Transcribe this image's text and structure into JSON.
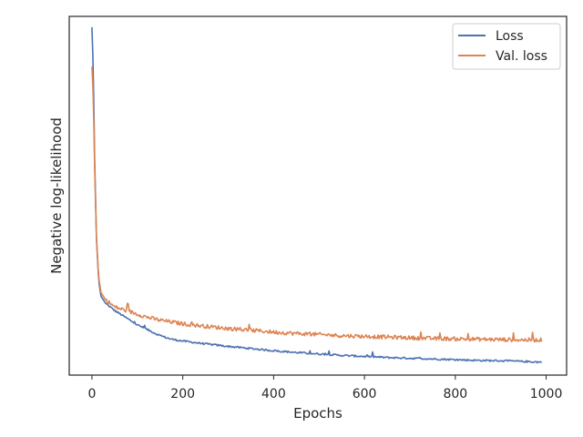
{
  "chart_data": {
    "type": "line",
    "title": "",
    "xlabel": "Epochs",
    "ylabel": "Negative log-likelihood",
    "xlim": [
      -50,
      1045
    ],
    "ylim": [
      0,
      100
    ],
    "x_ticks": [
      0,
      200,
      400,
      600,
      800,
      1000
    ],
    "y_ticks_visible": false,
    "grid": false,
    "legend_position": "top-right",
    "series": [
      {
        "name": "Loss",
        "color": "#4c72b0",
        "points": [
          [
            0,
            97
          ],
          [
            3,
            85
          ],
          [
            6,
            60
          ],
          [
            10,
            38
          ],
          [
            15,
            26
          ],
          [
            20,
            22
          ],
          [
            30,
            20
          ],
          [
            50,
            18
          ],
          [
            75,
            16
          ],
          [
            100,
            14
          ],
          [
            125,
            12.5
          ],
          [
            150,
            11
          ],
          [
            175,
            10
          ],
          [
            200,
            9.5
          ],
          [
            250,
            8.7
          ],
          [
            300,
            8
          ],
          [
            350,
            7.4
          ],
          [
            400,
            6.8
          ],
          [
            450,
            6.3
          ],
          [
            500,
            5.9
          ],
          [
            550,
            5.5
          ],
          [
            600,
            5.2
          ],
          [
            650,
            4.9
          ],
          [
            700,
            4.7
          ],
          [
            750,
            4.5
          ],
          [
            800,
            4.3
          ],
          [
            850,
            4.1
          ],
          [
            900,
            4
          ],
          [
            950,
            3.8
          ],
          [
            990,
            3.6
          ]
        ]
      },
      {
        "name": "Val. loss",
        "color": "#dd8452",
        "points": [
          [
            0,
            86
          ],
          [
            3,
            78
          ],
          [
            6,
            58
          ],
          [
            10,
            38
          ],
          [
            15,
            27
          ],
          [
            20,
            23
          ],
          [
            30,
            21
          ],
          [
            50,
            19
          ],
          [
            75,
            18
          ],
          [
            100,
            17
          ],
          [
            125,
            16
          ],
          [
            150,
            15.3
          ],
          [
            175,
            14.8
          ],
          [
            200,
            14.3
          ],
          [
            250,
            13.6
          ],
          [
            300,
            13
          ],
          [
            350,
            12.5
          ],
          [
            400,
            12
          ],
          [
            450,
            11.6
          ],
          [
            500,
            11.3
          ],
          [
            550,
            11
          ],
          [
            600,
            10.8
          ],
          [
            650,
            10.6
          ],
          [
            700,
            10.4
          ],
          [
            750,
            10.2
          ],
          [
            800,
            10.1
          ],
          [
            850,
            10
          ],
          [
            900,
            9.9
          ],
          [
            950,
            9.8
          ],
          [
            990,
            9.8
          ]
        ]
      }
    ]
  }
}
